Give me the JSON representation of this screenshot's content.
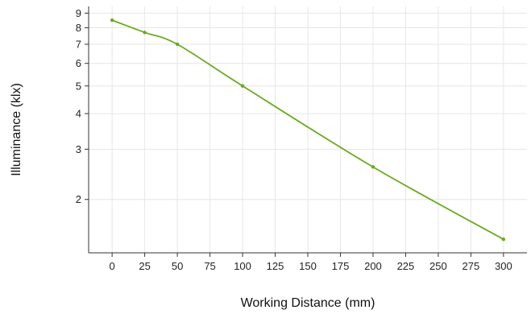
{
  "chart_data": {
    "type": "line",
    "xlabel": "Working Distance (mm)",
    "ylabel": "Illuminance (klx)",
    "x_ticks": [
      0,
      25,
      50,
      75,
      100,
      125,
      150,
      175,
      200,
      225,
      250,
      275,
      300
    ],
    "y_ticks": [
      2,
      3,
      4,
      5,
      6,
      7,
      8,
      9
    ],
    "y_scale": "log",
    "xlim": [
      -18,
      318
    ],
    "ylim": [
      1.3,
      9.5
    ],
    "grid": true,
    "legend": "none",
    "colors": {
      "line": "#6aaa1e",
      "grid": "#e6e6e6",
      "axis": "#333333"
    },
    "series": [
      {
        "x": [
          0,
          25,
          50,
          100,
          200,
          300
        ],
        "y": [
          8.5,
          7.7,
          7.0,
          5.0,
          2.6,
          1.45
        ]
      }
    ]
  }
}
